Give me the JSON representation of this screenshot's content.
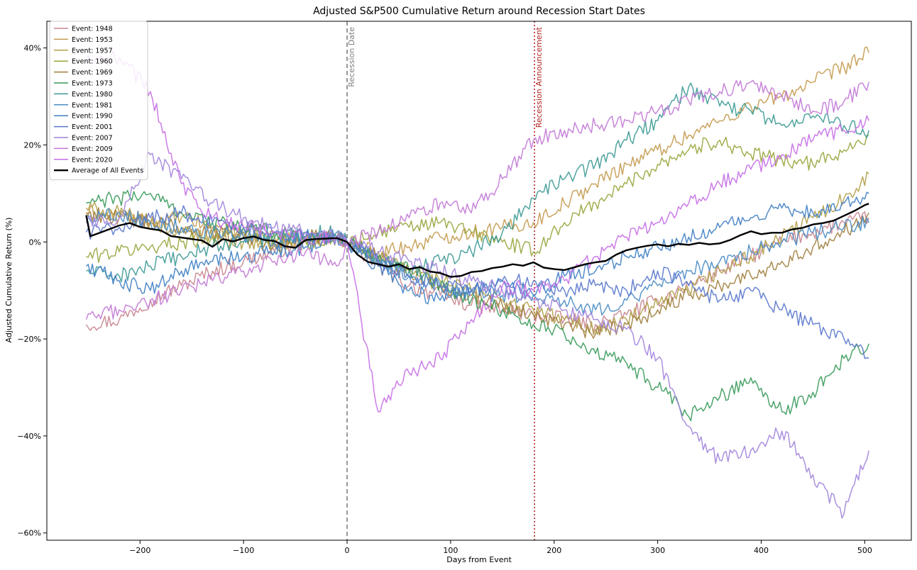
{
  "chart_data": {
    "type": "line",
    "title": "Adjusted S&P500 Cumulative Return around Recession Start Dates",
    "xlabel": "Days from Event",
    "ylabel": "Adjusted Cumulative Return (%)",
    "xlim": [
      -290,
      545
    ],
    "ylim": [
      -61.5,
      45.5
    ],
    "x_ticks": [
      -200,
      -100,
      0,
      100,
      200,
      300,
      400,
      500
    ],
    "x_tick_labels": [
      "−200",
      "−100",
      "0",
      "100",
      "200",
      "300",
      "400",
      "500"
    ],
    "y_ticks": [
      40,
      20,
      0,
      -20,
      -40,
      -60
    ],
    "y_tick_labels": [
      "40%",
      "20%",
      "0%",
      "−20%",
      "−40%",
      "−60%"
    ],
    "grid": false,
    "legend_position": "top-left",
    "reference_lines": [
      {
        "x": 0,
        "label": "Recession Date",
        "color": "#808080",
        "style": "dashed"
      },
      {
        "x": 181,
        "label": "Recession Announcement",
        "color": "#b22222",
        "style": "dotted"
      }
    ],
    "series": [
      {
        "name": "Event: 1948",
        "color": "#c8858f",
        "x": [
          -252,
          -220,
          -190,
          -160,
          -130,
          -100,
          -70,
          -40,
          -10,
          0,
          30,
          60,
          90,
          120,
          150,
          180,
          210,
          240,
          270,
          300,
          330,
          360,
          390,
          420,
          450,
          480,
          504
        ],
        "y": [
          -17,
          -16,
          -12,
          -9,
          -6,
          -4,
          -2,
          0,
          1,
          0,
          -5,
          -9,
          -11,
          -13,
          -14,
          -15,
          -16,
          -17,
          -15,
          -12,
          -9,
          -6,
          -3,
          0,
          2,
          4,
          5
        ]
      },
      {
        "name": "Event: 1953",
        "color": "#c49a4e",
        "x": [
          -252,
          -220,
          -190,
          -160,
          -130,
          -100,
          -70,
          -40,
          -10,
          0,
          30,
          60,
          90,
          120,
          150,
          180,
          210,
          240,
          270,
          300,
          330,
          360,
          390,
          420,
          450,
          480,
          504
        ],
        "y": [
          6,
          5,
          4,
          5,
          3,
          2,
          1,
          0,
          1,
          0,
          -2,
          -1,
          1,
          2,
          3,
          4,
          8,
          12,
          16,
          19,
          22,
          25,
          28,
          30,
          33,
          36,
          39
        ]
      },
      {
        "name": "Event: 1957",
        "color": "#b3a049",
        "x": [
          -252,
          -220,
          -190,
          -160,
          -130,
          -100,
          -70,
          -40,
          -10,
          0,
          30,
          60,
          90,
          120,
          150,
          180,
          210,
          240,
          270,
          300,
          330,
          360,
          390,
          420,
          450,
          480,
          504
        ],
        "y": [
          7,
          6,
          4,
          2,
          1,
          0,
          -1,
          0,
          1,
          0,
          -3,
          -6,
          -8,
          -10,
          -12,
          -14,
          -16,
          -18,
          -16,
          -13,
          -10,
          -6,
          -3,
          1,
          5,
          9,
          14
        ]
      },
      {
        "name": "Event: 1960",
        "color": "#9aa53e",
        "x": [
          -252,
          -220,
          -190,
          -160,
          -130,
          -100,
          -70,
          -40,
          -10,
          0,
          30,
          60,
          90,
          120,
          150,
          180,
          210,
          240,
          270,
          300,
          330,
          360,
          390,
          420,
          450,
          480,
          504
        ],
        "y": [
          -3,
          -2,
          -1,
          0,
          1,
          2,
          1,
          0,
          1,
          0,
          2,
          3,
          4,
          2,
          0,
          -2,
          4,
          8,
          12,
          16,
          19,
          21,
          18,
          17,
          16,
          19,
          22
        ]
      },
      {
        "name": "Event: 1969",
        "color": "#a07f3e",
        "x": [
          -252,
          -220,
          -190,
          -160,
          -130,
          -100,
          -70,
          -40,
          -10,
          0,
          30,
          60,
          90,
          120,
          150,
          180,
          210,
          240,
          270,
          300,
          330,
          360,
          390,
          420,
          450,
          480,
          504
        ],
        "y": [
          6,
          5,
          4,
          3,
          2,
          1,
          0,
          1,
          1,
          0,
          -3,
          -6,
          -9,
          -11,
          -13,
          -15,
          -17,
          -19,
          -17,
          -14,
          -11,
          -9,
          -7,
          -4,
          -1,
          2,
          6
        ]
      },
      {
        "name": "Event: 1973",
        "color": "#3a9a5b",
        "x": [
          -252,
          -220,
          -190,
          -160,
          -130,
          -100,
          -70,
          -40,
          -10,
          0,
          30,
          60,
          90,
          120,
          150,
          180,
          210,
          240,
          270,
          300,
          330,
          360,
          390,
          420,
          450,
          480,
          504
        ],
        "y": [
          8,
          9,
          10,
          6,
          4,
          3,
          2,
          1,
          1,
          0,
          -3,
          -6,
          -9,
          -12,
          -14,
          -17,
          -19,
          -23,
          -25,
          -30,
          -36,
          -32,
          -28,
          -35,
          -31,
          -24,
          -21
        ]
      },
      {
        "name": "Event: 1980",
        "color": "#3d9a95",
        "x": [
          -252,
          -220,
          -190,
          -160,
          -130,
          -100,
          -70,
          -40,
          -10,
          0,
          30,
          60,
          90,
          120,
          150,
          180,
          210,
          240,
          270,
          300,
          330,
          360,
          390,
          420,
          450,
          480,
          504
        ],
        "y": [
          -6,
          -7,
          -5,
          -3,
          -1,
          0,
          1,
          2,
          2,
          0,
          -3,
          -6,
          -4,
          -2,
          2,
          9,
          13,
          16,
          21,
          25,
          32,
          28,
          27,
          24,
          26,
          24,
          23
        ]
      },
      {
        "name": "Event: 1981",
        "color": "#4a8cc4",
        "x": [
          -252,
          -220,
          -190,
          -160,
          -130,
          -100,
          -70,
          -40,
          -10,
          0,
          30,
          60,
          90,
          120,
          150,
          180,
          210,
          240,
          270,
          300,
          330,
          360,
          390,
          420,
          450,
          480,
          504
        ],
        "y": [
          5,
          6,
          4,
          3,
          2,
          1,
          0,
          1,
          1,
          0,
          -4,
          -7,
          -9,
          -10,
          -11,
          -11,
          -12,
          -14,
          -12,
          -9,
          -6,
          -4,
          -2,
          0,
          2,
          3,
          4
        ]
      },
      {
        "name": "Event: 1990",
        "color": "#3f7fc4",
        "x": [
          -252,
          -220,
          -190,
          -160,
          -130,
          -100,
          -70,
          -40,
          -10,
          0,
          30,
          60,
          90,
          120,
          150,
          180,
          210,
          240,
          270,
          300,
          330,
          360,
          390,
          420,
          450,
          480,
          504
        ],
        "y": [
          -5,
          -8,
          -10,
          -6,
          -4,
          -3,
          -2,
          -1,
          1,
          0,
          -5,
          -10,
          -12,
          -10,
          -8,
          -11,
          -7,
          -6,
          -3,
          -1,
          1,
          3,
          5,
          7,
          6,
          8,
          10
        ]
      },
      {
        "name": "Event: 2001",
        "color": "#5a78cc",
        "x": [
          -252,
          -220,
          -190,
          -160,
          -130,
          -100,
          -70,
          -40,
          -10,
          0,
          30,
          60,
          90,
          120,
          150,
          180,
          210,
          240,
          270,
          300,
          330,
          360,
          390,
          420,
          450,
          480,
          504
        ],
        "y": [
          2,
          3,
          5,
          6,
          4,
          3,
          2,
          1,
          1,
          0,
          -4,
          -7,
          -9,
          -10,
          -8,
          -8,
          -10,
          -9,
          -10,
          -6,
          -9,
          -12,
          -10,
          -14,
          -17,
          -20,
          -24
        ]
      },
      {
        "name": "Event: 2007",
        "color": "#a284dc",
        "x": [
          -252,
          -220,
          -190,
          -160,
          -130,
          -100,
          -70,
          -40,
          -10,
          0,
          30,
          60,
          90,
          120,
          150,
          180,
          210,
          240,
          270,
          300,
          330,
          360,
          390,
          420,
          450,
          480,
          504
        ],
        "y": [
          4,
          5,
          18,
          13,
          8,
          5,
          3,
          2,
          1,
          0,
          -2,
          -4,
          -6,
          -8,
          -10,
          -12,
          -14,
          -16,
          -18,
          -24,
          -38,
          -45,
          -43,
          -39,
          -48,
          -56,
          -43
        ]
      },
      {
        "name": "Event: 2009",
        "color": "#c279d6",
        "x": [
          -252,
          -220,
          -190,
          -160,
          -130,
          -100,
          -70,
          -40,
          -10,
          0,
          30,
          60,
          90,
          120,
          150,
          180,
          210,
          240,
          270,
          300,
          330,
          360,
          390,
          420,
          450,
          480,
          504
        ],
        "y": [
          -16,
          -14,
          -12,
          -10,
          -8,
          -6,
          -4,
          -2,
          -5,
          0,
          2,
          5,
          8,
          6,
          13,
          21,
          23,
          24,
          25,
          27,
          29,
          31,
          33,
          30,
          27,
          29,
          33
        ]
      },
      {
        "name": "Event: 2020",
        "color": "#c56ee6",
        "x": [
          -252,
          -220,
          -190,
          -160,
          -130,
          -100,
          -70,
          -40,
          -10,
          0,
          30,
          60,
          90,
          120,
          150,
          180,
          210,
          240,
          270,
          300,
          330,
          360,
          390,
          420,
          450,
          480,
          504
        ],
        "y": [
          37,
          38,
          31,
          12,
          5,
          3,
          2,
          1,
          1,
          0,
          -35,
          -27,
          -24,
          -16,
          -9,
          -10,
          -8,
          -3,
          1,
          4,
          8,
          12,
          15,
          18,
          21,
          23,
          25
        ]
      },
      {
        "name": "Average of All Events",
        "color": "#000000",
        "bold": true,
        "x": [
          -252,
          -248,
          -240,
          -230,
          -220,
          -210,
          -200,
          -190,
          -180,
          -170,
          -160,
          -150,
          -140,
          -130,
          -120,
          -110,
          -100,
          -90,
          -80,
          -70,
          -60,
          -50,
          -40,
          -30,
          -20,
          -10,
          0,
          10,
          20,
          30,
          40,
          50,
          60,
          70,
          80,
          90,
          100,
          110,
          120,
          130,
          140,
          150,
          160,
          170,
          180,
          190,
          200,
          210,
          220,
          230,
          240,
          250,
          260,
          270,
          280,
          290,
          300,
          310,
          320,
          330,
          340,
          350,
          360,
          370,
          380,
          390,
          400,
          410,
          420,
          430,
          440,
          450,
          460,
          470,
          480,
          490,
          500,
          504
        ],
        "y": [
          5.5,
          1.2,
          1.8,
          2.6,
          3.4,
          3.9,
          3.1,
          2.7,
          2.4,
          1.2,
          0.9,
          0.6,
          0.3,
          -1.0,
          0.6,
          0.1,
          0.8,
          1.1,
          0.4,
          0.2,
          -0.9,
          -1.2,
          0.4,
          0.6,
          0.7,
          0.8,
          0.0,
          -2.6,
          -4.1,
          -4.6,
          -5.1,
          -4.6,
          -5.6,
          -5.2,
          -6.1,
          -6.4,
          -7.2,
          -7.0,
          -6.2,
          -6.0,
          -5.4,
          -5.1,
          -4.6,
          -4.9,
          -4.2,
          -5.3,
          -5.6,
          -5.8,
          -5.2,
          -4.6,
          -4.2,
          -3.9,
          -2.6,
          -1.7,
          -1.2,
          -0.8,
          -0.5,
          -0.9,
          -0.4,
          -0.6,
          -0.2,
          -0.5,
          -0.3,
          0.4,
          1.4,
          2.2,
          1.6,
          1.9,
          1.9,
          2.6,
          2.9,
          3.6,
          3.9,
          4.4,
          5.4,
          6.4,
          7.6,
          7.9
        ]
      }
    ]
  }
}
